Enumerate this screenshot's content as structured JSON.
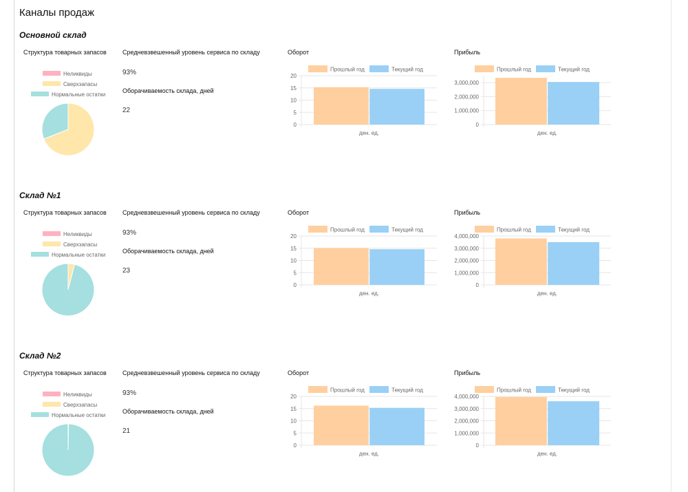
{
  "page_title": "Каналы продаж",
  "colors": {
    "illiquid": "#ffb1c1",
    "overstock": "#ffe6aa",
    "normal": "#a5dfdf",
    "prev_year": "#ffcf9f",
    "curr_year": "#9ad0f5",
    "grid": "#e5e5e5",
    "axis_text": "#666666"
  },
  "labels": {
    "structure_title": "Структура товарных запасов",
    "service_title": "Средневзвешенный уровень сервиса по складу",
    "turnover_days_title": "Оборачиваемость склада, дней",
    "turnover_title": "Оборот",
    "profit_title": "Прибыль"
  },
  "sections": [
    {
      "title": "Основной склад",
      "service_level": "93%",
      "turnover_days": "22"
    },
    {
      "title": "Склад №1",
      "service_level": "93%",
      "turnover_days": "23"
    },
    {
      "title": "Склад №2",
      "service_level": "93%",
      "turnover_days": "21"
    }
  ],
  "chart_data": [
    {
      "type": "pie",
      "section": "Основной склад",
      "title": "Структура товарных запасов",
      "legend": [
        "Неликвиды",
        "Сверхзапасы",
        "Нормальные остатки"
      ],
      "values": [
        0,
        69,
        31
      ]
    },
    {
      "type": "bar",
      "section": "Основной склад",
      "title": "Оборот",
      "categories": [
        "ден. ед."
      ],
      "series": [
        {
          "name": "Прошлый год",
          "values": [
            15.3
          ]
        },
        {
          "name": "Текущий год",
          "values": [
            14.6
          ]
        }
      ],
      "ylim": [
        0,
        20
      ],
      "yticks": [
        "20",
        "15",
        "10",
        "5",
        "0"
      ],
      "ytick_values": [
        20,
        15,
        10,
        5,
        0
      ],
      "xlabel": "ден. ед."
    },
    {
      "type": "bar",
      "section": "Основной склад",
      "title": "Прибыль",
      "categories": [
        "ден. ед."
      ],
      "series": [
        {
          "name": "Прошлый год",
          "values": [
            3350000
          ]
        },
        {
          "name": "Текущий год",
          "values": [
            3050000
          ]
        }
      ],
      "ylim": [
        0,
        3500000
      ],
      "yticks": [
        "3,000,000",
        "2,000,000",
        "1,000,000",
        "0"
      ],
      "ytick_values": [
        3000000,
        2000000,
        1000000,
        0
      ],
      "xlabel": "ден. ед."
    },
    {
      "type": "pie",
      "section": "Склад №1",
      "title": "Структура товарных запасов",
      "legend": [
        "Неликвиды",
        "Сверхзапасы",
        "Нормальные остатки"
      ],
      "values": [
        0,
        4,
        96
      ]
    },
    {
      "type": "bar",
      "section": "Склад №1",
      "title": "Оборот",
      "categories": [
        "ден. ед."
      ],
      "series": [
        {
          "name": "Прошлый год",
          "values": [
            15.1
          ]
        },
        {
          "name": "Текущий год",
          "values": [
            14.6
          ]
        }
      ],
      "ylim": [
        0,
        20
      ],
      "yticks": [
        "20",
        "15",
        "10",
        "5",
        "0"
      ],
      "ytick_values": [
        20,
        15,
        10,
        5,
        0
      ],
      "xlabel": "ден. ед."
    },
    {
      "type": "bar",
      "section": "Склад №1",
      "title": "Прибыль",
      "categories": [
        "ден. ед."
      ],
      "series": [
        {
          "name": "Прошлый год",
          "values": [
            3800000
          ]
        },
        {
          "name": "Текущий год",
          "values": [
            3500000
          ]
        }
      ],
      "ylim": [
        0,
        4000000
      ],
      "yticks": [
        "4,000,000",
        "3,000,000",
        "2,000,000",
        "1,000,000",
        "0"
      ],
      "ytick_values": [
        4000000,
        3000000,
        2000000,
        1000000,
        0
      ],
      "xlabel": "ден. ед."
    },
    {
      "type": "pie",
      "section": "Склад №2",
      "title": "Структура товарных запасов",
      "legend": [
        "Неликвиды",
        "Сверхзапасы",
        "Нормальные остатки"
      ],
      "values": [
        0,
        0.3,
        99.7
      ]
    },
    {
      "type": "bar",
      "section": "Склад №2",
      "title": "Оборот",
      "categories": [
        "ден. ед."
      ],
      "series": [
        {
          "name": "Прошлый год",
          "values": [
            16.2
          ]
        },
        {
          "name": "Текущий год",
          "values": [
            15.3
          ]
        }
      ],
      "ylim": [
        0,
        20
      ],
      "yticks": [
        "20",
        "15",
        "10",
        "5",
        "0"
      ],
      "ytick_values": [
        20,
        15,
        10,
        5,
        0
      ],
      "xlabel": "ден. ед."
    },
    {
      "type": "bar",
      "section": "Склад №2",
      "title": "Прибыль",
      "categories": [
        "ден. ед."
      ],
      "series": [
        {
          "name": "Прошлый год",
          "values": [
            3950000
          ]
        },
        {
          "name": "Текущий год",
          "values": [
            3600000
          ]
        }
      ],
      "ylim": [
        0,
        4000000
      ],
      "yticks": [
        "4,000,000",
        "3,000,000",
        "2,000,000",
        "1,000,000",
        "0"
      ],
      "ytick_values": [
        4000000,
        3000000,
        2000000,
        1000000,
        0
      ],
      "xlabel": "ден. ед."
    }
  ]
}
